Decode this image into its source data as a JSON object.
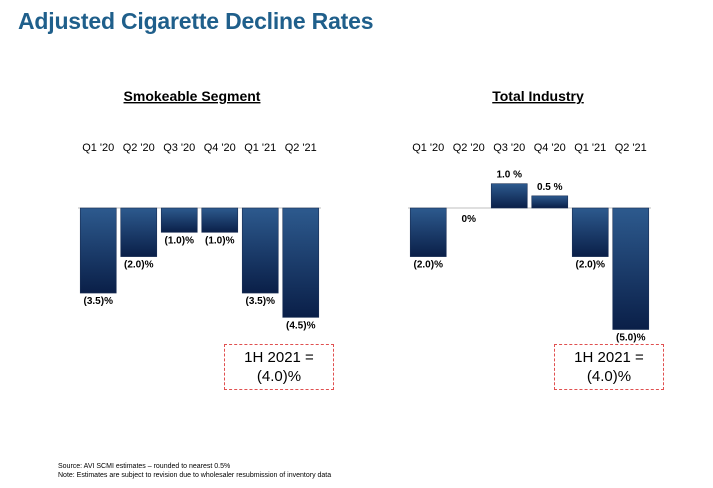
{
  "page": {
    "title": "Adjusted Cigarette Decline Rates",
    "footnotes": [
      "Source: AVI SCMI estimates – rounded to nearest 0.5%",
      "Note: Estimates are subject to revision due to wholesaler resubmission of inventory data"
    ]
  },
  "colors": {
    "title": "#1f5f8b",
    "bar_top": "#2d5a8e",
    "bar_bottom": "#0a1f48",
    "callout_border": "#e05050"
  },
  "chart_data": [
    {
      "type": "bar",
      "title": "Smokeable Segment",
      "categories": [
        "Q1 '20",
        "Q2 '20",
        "Q3 '20",
        "Q4 '20",
        "Q1 '21",
        "Q2 '21"
      ],
      "values": [
        -3.5,
        -2.0,
        -1.0,
        -1.0,
        -3.5,
        -4.5
      ],
      "value_labels": [
        "(3.5)%",
        "(2.0)%",
        "(1.0)%",
        "(1.0)%",
        "(3.5)%",
        "(4.5)%"
      ],
      "ylim": [
        -5.0,
        1.0
      ],
      "callout": [
        "1H 2021 =",
        "(4.0)%"
      ]
    },
    {
      "type": "bar",
      "title": "Total Industry",
      "categories": [
        "Q1 '20",
        "Q2 '20",
        "Q3 '20",
        "Q4 '20",
        "Q1 '21",
        "Q2 '21"
      ],
      "values": [
        -2.0,
        0.0,
        1.0,
        0.5,
        -2.0,
        -5.0
      ],
      "value_labels": [
        "(2.0)%",
        "0%",
        "1.0 %",
        "0.5 %",
        "(2.0)%",
        "(5.0)%"
      ],
      "ylim": [
        -5.0,
        1.0
      ],
      "callout": [
        "1H 2021 =",
        "(4.0)%"
      ]
    }
  ]
}
